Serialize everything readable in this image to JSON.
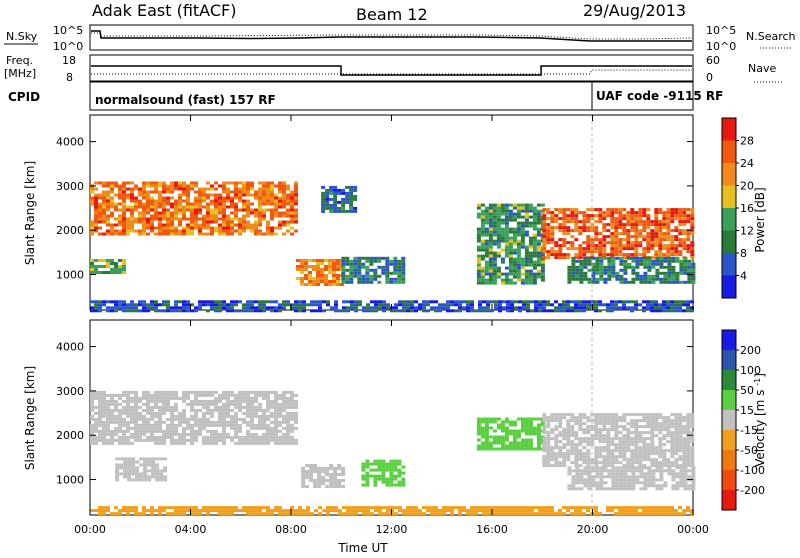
{
  "header": {
    "radar": "Adak East (fitACF)",
    "beam": "Beam 12",
    "date": "29/Aug/2013"
  },
  "noise_panel": {
    "left_label": "N.Sky",
    "left_ticks": [
      "10^5",
      "10^0"
    ],
    "right_label": "N.Search",
    "right_ticks": [
      "10^5",
      "10^0"
    ]
  },
  "freq_panel": {
    "left_label_1": "Freq.",
    "left_label_2": "[MHz]",
    "left_ticks": [
      "18",
      "8"
    ],
    "right_label": "Nave",
    "right_ticks": [
      "60",
      "0"
    ]
  },
  "cpid_panel": {
    "label": "CPID",
    "program_1": "normalsound (fast) 157 RF",
    "program_2": "UAF code -9115 RF"
  },
  "chart_data": [
    {
      "type": "heatmap",
      "quantity": "Power",
      "ylabel": "Slant Range [km]",
      "yticks": [
        1000,
        2000,
        3000,
        4000
      ],
      "ylim": [
        200,
        4600
      ],
      "x": [
        "00:00",
        "04:00",
        "08:00",
        "12:00",
        "16:00",
        "20:00",
        "00:00"
      ],
      "xlim_hours": [
        0,
        24
      ],
      "colorbar": {
        "label": "Power [dB]",
        "ticks": [
          4,
          8,
          12,
          16,
          20,
          24,
          28
        ],
        "range": [
          0,
          32
        ],
        "colors": [
          "#1a1ae6",
          "#2a55cc",
          "#2a7a3a",
          "#3aa05a",
          "#e6c020",
          "#f08a1a",
          "#f05a10",
          "#e61a10"
        ]
      },
      "regions": [
        {
          "t0": 0.0,
          "t1": 1.4,
          "r0": 1050,
          "r1": 1350,
          "level": 14
        },
        {
          "t0": 0.0,
          "t1": 8.2,
          "r0": 1900,
          "r1": 3100,
          "level": 24
        },
        {
          "t0": 8.2,
          "t1": 10.0,
          "r0": 800,
          "r1": 1350,
          "level": 22
        },
        {
          "t0": 10.0,
          "t1": 12.4,
          "r0": 850,
          "r1": 1400,
          "level": 10
        },
        {
          "t0": 9.2,
          "t1": 10.6,
          "r0": 2400,
          "r1": 3000,
          "level": 8
        },
        {
          "t0": 15.4,
          "t1": 18.0,
          "r0": 800,
          "r1": 2600,
          "level": 12
        },
        {
          "t0": 18.0,
          "t1": 24.0,
          "r0": 1400,
          "r1": 2500,
          "level": 26
        },
        {
          "t0": 19.0,
          "t1": 24.0,
          "r0": 800,
          "r1": 1400,
          "level": 10
        },
        {
          "t0": 0.0,
          "t1": 24.0,
          "r0": 200,
          "r1": 420,
          "level": 6
        }
      ]
    },
    {
      "type": "heatmap",
      "quantity": "Velocity",
      "ylabel": "Slant Range [km]",
      "yticks": [
        1000,
        2000,
        3000,
        4000
      ],
      "ylim": [
        200,
        4600
      ],
      "x": [
        "00:00",
        "04:00",
        "08:00",
        "12:00",
        "16:00",
        "20:00",
        "00:00"
      ],
      "xlabel": "Time UT",
      "colorbar": {
        "label": "Velocity [m s^-1]",
        "ticks": [
          200,
          100,
          50,
          15,
          -15,
          -50,
          -100,
          -200
        ],
        "colors": [
          "#1a1ae6",
          "#2a55aa",
          "#2a8a3a",
          "#5ad040",
          "#c0c0c0",
          "#f0a020",
          "#f07a10",
          "#f04a10",
          "#e61a10"
        ]
      },
      "regions": [
        {
          "t0": 0.0,
          "t1": 8.2,
          "r0": 1800,
          "r1": 3000,
          "level": 0
        },
        {
          "t0": 1.0,
          "t1": 3.0,
          "r0": 1000,
          "r1": 1500,
          "level": 0
        },
        {
          "t0": 8.4,
          "t1": 10.0,
          "r0": 850,
          "r1": 1350,
          "level": 0
        },
        {
          "t0": 10.8,
          "t1": 12.4,
          "r0": 900,
          "r1": 1450,
          "level": 35
        },
        {
          "t0": 15.4,
          "t1": 18.0,
          "r0": 1700,
          "r1": 2400,
          "level": 35
        },
        {
          "t0": 18.0,
          "t1": 24.0,
          "r0": 1300,
          "r1": 2500,
          "level": 0
        },
        {
          "t0": 19.0,
          "t1": 24.0,
          "r0": 800,
          "r1": 1300,
          "level": 0
        },
        {
          "t0": 0.0,
          "t1": 24.0,
          "r0": 200,
          "r1": 400,
          "level": -40
        }
      ]
    }
  ]
}
